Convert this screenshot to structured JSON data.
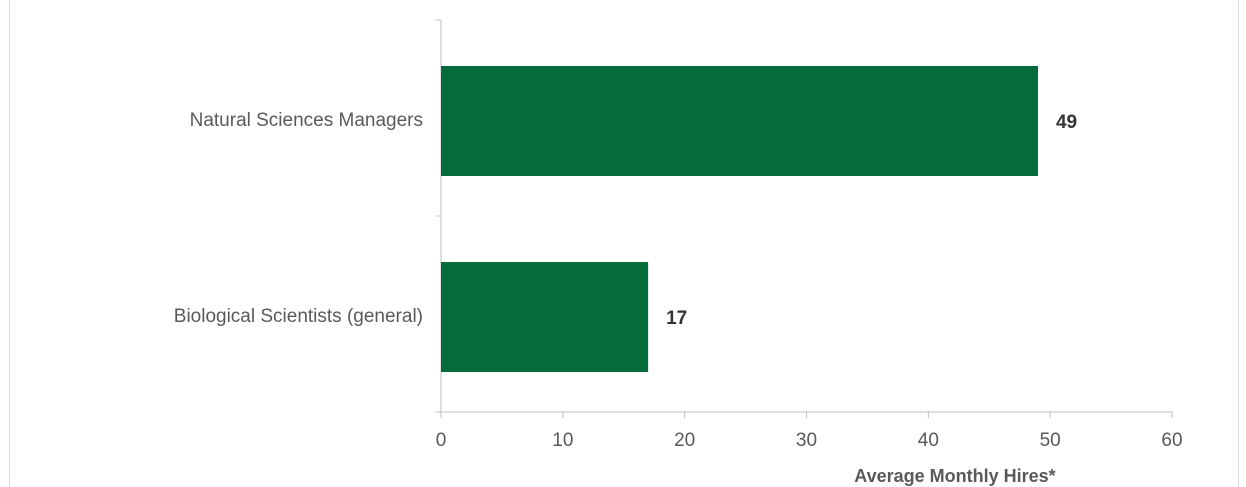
{
  "chart_data": {
    "type": "bar",
    "orientation": "horizontal",
    "categories": [
      "Natural Sciences Managers",
      "Biological Scientists (general)"
    ],
    "values": [
      49,
      17
    ],
    "color": "#056b3a",
    "xlabel": "Average Monthly Hires*",
    "xlim": [
      0,
      60
    ],
    "xticks": [
      0,
      10,
      20,
      30,
      40,
      50,
      60
    ],
    "grid": false
  }
}
